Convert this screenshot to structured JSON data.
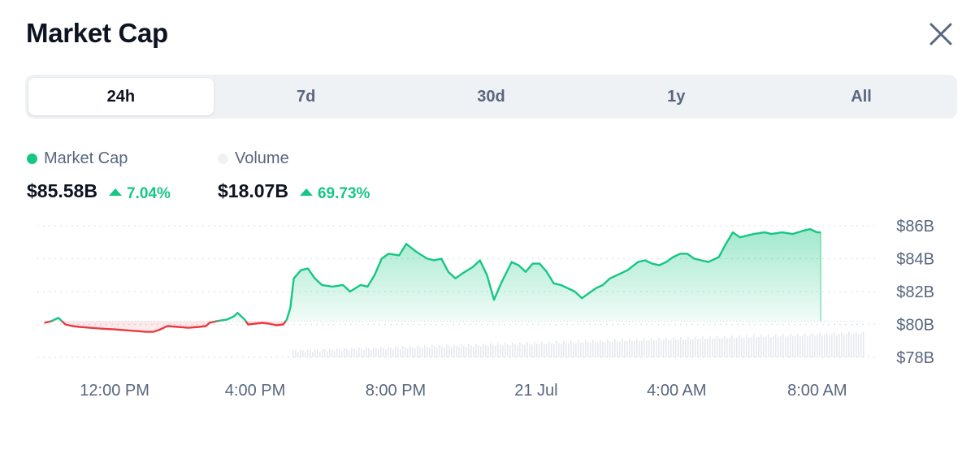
{
  "header": {
    "title": "Market Cap"
  },
  "tabs": [
    {
      "label": "24h",
      "active": true
    },
    {
      "label": "7d",
      "active": false
    },
    {
      "label": "30d",
      "active": false
    },
    {
      "label": "1y",
      "active": false
    },
    {
      "label": "All",
      "active": false
    }
  ],
  "stats": {
    "market_cap": {
      "label": "Market Cap",
      "value": "$85.58B",
      "change": "7.04%",
      "dot_color": "#16c784"
    },
    "volume": {
      "label": "Volume",
      "value": "$18.07B",
      "change": "69.73%",
      "dot_color": "#eff2f5"
    }
  },
  "colors": {
    "up": "#16c784",
    "down": "#ea3943",
    "baseline": "#cfd6e4",
    "volume_bar": "#e6e9ee",
    "tick_text": "#58667e"
  },
  "chart_data": {
    "type": "area",
    "baseline_value": 80.2,
    "y_tick_labels": [
      "$86B",
      "$84B",
      "$82B",
      "$80B",
      "$78B"
    ],
    "y_tick_values": [
      86,
      84,
      82,
      80,
      78
    ],
    "ylim": [
      78,
      86
    ],
    "xlim": [
      9.8,
      33.3
    ],
    "x_tick_labels": [
      "12:00 PM",
      "4:00 PM",
      "8:00 PM",
      "21 Jul",
      "4:00 AM",
      "8:00 AM"
    ],
    "x_tick_values": [
      12,
      16,
      20,
      24,
      28,
      32
    ],
    "grid": true,
    "series": [
      {
        "values": [
          [
            10.0,
            80.1
          ],
          [
            10.2,
            80.2
          ],
          [
            10.4,
            80.4
          ],
          [
            10.6,
            80.0
          ],
          [
            10.8,
            79.9
          ],
          [
            11.0,
            79.85
          ],
          [
            11.3,
            79.8
          ],
          [
            11.6,
            79.75
          ],
          [
            12.0,
            79.7
          ],
          [
            12.3,
            79.65
          ],
          [
            12.6,
            79.6
          ],
          [
            12.9,
            79.55
          ],
          [
            13.1,
            79.55
          ],
          [
            13.3,
            79.7
          ],
          [
            13.5,
            79.9
          ],
          [
            13.8,
            79.85
          ],
          [
            14.1,
            79.8
          ],
          [
            14.4,
            79.85
          ],
          [
            14.6,
            79.9
          ],
          [
            14.7,
            80.1
          ],
          [
            14.9,
            80.2
          ],
          [
            15.2,
            80.3
          ],
          [
            15.4,
            80.5
          ],
          [
            15.5,
            80.7
          ],
          [
            15.7,
            80.3
          ],
          [
            15.8,
            80.0
          ],
          [
            16.0,
            80.05
          ],
          [
            16.2,
            80.1
          ],
          [
            16.4,
            80.05
          ],
          [
            16.6,
            79.95
          ],
          [
            16.8,
            80.0
          ],
          [
            16.9,
            80.3
          ],
          [
            17.0,
            81.0
          ],
          [
            17.1,
            82.8
          ],
          [
            17.3,
            83.3
          ],
          [
            17.5,
            83.4
          ],
          [
            17.7,
            82.8
          ],
          [
            17.9,
            82.4
          ],
          [
            18.2,
            82.3
          ],
          [
            18.5,
            82.4
          ],
          [
            18.7,
            82.0
          ],
          [
            19.0,
            82.4
          ],
          [
            19.2,
            82.3
          ],
          [
            19.4,
            83.0
          ],
          [
            19.6,
            84.0
          ],
          [
            19.8,
            84.3
          ],
          [
            20.1,
            84.2
          ],
          [
            20.3,
            84.9
          ],
          [
            20.6,
            84.4
          ],
          [
            20.9,
            84.0
          ],
          [
            21.1,
            83.9
          ],
          [
            21.3,
            84.0
          ],
          [
            21.5,
            83.2
          ],
          [
            21.7,
            82.8
          ],
          [
            21.9,
            83.1
          ],
          [
            22.2,
            83.5
          ],
          [
            22.4,
            83.9
          ],
          [
            22.6,
            83.0
          ],
          [
            22.8,
            81.5
          ],
          [
            23.0,
            82.5
          ],
          [
            23.3,
            83.8
          ],
          [
            23.5,
            83.6
          ],
          [
            23.7,
            83.2
          ],
          [
            23.9,
            83.7
          ],
          [
            24.1,
            83.7
          ],
          [
            24.3,
            83.2
          ],
          [
            24.5,
            82.5
          ],
          [
            24.7,
            82.4
          ],
          [
            24.9,
            82.2
          ],
          [
            25.1,
            82.0
          ],
          [
            25.3,
            81.6
          ],
          [
            25.5,
            81.9
          ],
          [
            25.7,
            82.2
          ],
          [
            25.9,
            82.4
          ],
          [
            26.1,
            82.8
          ],
          [
            26.3,
            83.0
          ],
          [
            26.6,
            83.3
          ],
          [
            26.9,
            83.8
          ],
          [
            27.1,
            83.9
          ],
          [
            27.3,
            83.7
          ],
          [
            27.5,
            83.6
          ],
          [
            27.7,
            83.8
          ],
          [
            27.9,
            84.1
          ],
          [
            28.1,
            84.3
          ],
          [
            28.3,
            84.3
          ],
          [
            28.5,
            84.0
          ],
          [
            28.7,
            83.9
          ],
          [
            28.9,
            83.8
          ],
          [
            29.2,
            84.1
          ],
          [
            29.4,
            84.9
          ],
          [
            29.6,
            85.6
          ],
          [
            29.8,
            85.3
          ],
          [
            30.0,
            85.4
          ],
          [
            30.2,
            85.5
          ],
          [
            30.5,
            85.6
          ],
          [
            30.7,
            85.5
          ],
          [
            31.0,
            85.6
          ],
          [
            31.3,
            85.5
          ],
          [
            31.6,
            85.7
          ],
          [
            31.8,
            85.8
          ],
          [
            32.0,
            85.6
          ],
          [
            32.1,
            85.6
          ]
        ]
      }
    ]
  }
}
